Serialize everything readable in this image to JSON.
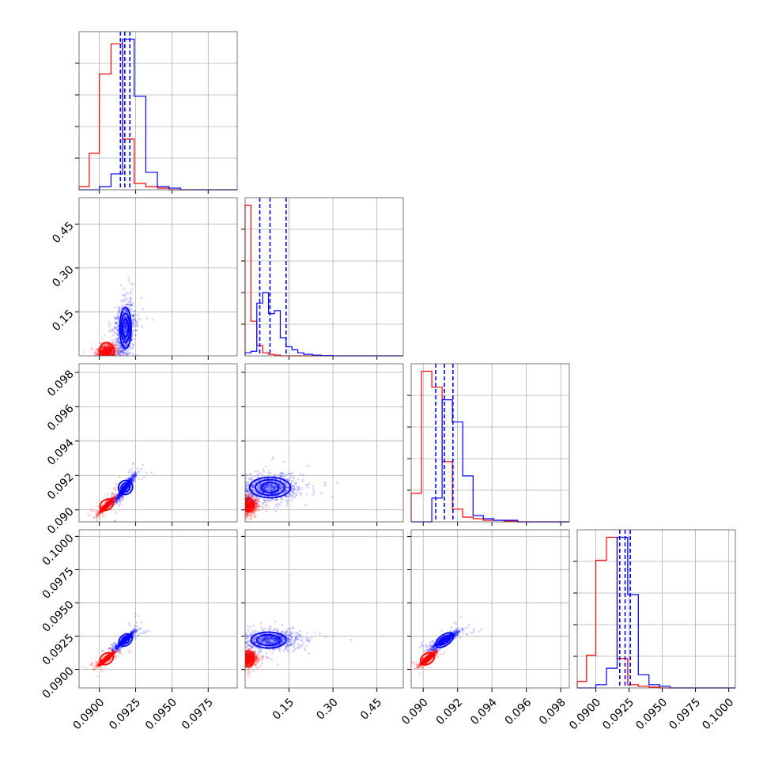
{
  "chart_data": {
    "type": "corner",
    "grid": true,
    "colors": {
      "a": "#ff0000",
      "b": "#0000ff"
    },
    "variables": [
      {
        "range": [
          0.0886,
          0.0995
        ],
        "ticks": [
          {
            "v": 0.09,
            "label": "0.0900"
          },
          {
            "v": 0.0925,
            "label": "0.0925"
          },
          {
            "v": 0.095,
            "label": "0.0950"
          },
          {
            "v": 0.0975,
            "label": "0.0975"
          }
        ]
      },
      {
        "range": [
          0.0,
          0.54
        ],
        "ticks": [
          {
            "v": 0.15,
            "label": "0.15"
          },
          {
            "v": 0.3,
            "label": "0.30"
          },
          {
            "v": 0.45,
            "label": "0.45"
          }
        ]
      },
      {
        "range": [
          0.0893,
          0.0985
        ],
        "ticks": [
          {
            "v": 0.09,
            "label": "0.090"
          },
          {
            "v": 0.092,
            "label": "0.092"
          },
          {
            "v": 0.094,
            "label": "0.094"
          },
          {
            "v": 0.096,
            "label": "0.096"
          },
          {
            "v": 0.098,
            "label": "0.098"
          }
        ]
      },
      {
        "range": [
          0.0886,
          0.1005
        ],
        "ticks": [
          {
            "v": 0.09,
            "label": "0.0900"
          },
          {
            "v": 0.0925,
            "label": "0.0925"
          },
          {
            "v": 0.095,
            "label": "0.0950"
          },
          {
            "v": 0.0975,
            "label": "0.0975"
          },
          {
            "v": 0.1,
            "label": "0.1000"
          }
        ]
      }
    ],
    "histograms": [
      {
        "edges": [
          0.0886,
          0.0893,
          0.09,
          0.0908,
          0.0916,
          0.0924,
          0.0932,
          0.094,
          0.0948,
          0.0956,
          0.0964,
          0.0995
        ],
        "a": [
          0.02,
          0.23,
          0.73,
          0.92,
          0.32,
          0.04,
          0.02,
          0.01,
          0,
          0,
          0
        ],
        "b": [
          0,
          0,
          0.02,
          0.1,
          0.95,
          0.59,
          0.11,
          0.02,
          0.01,
          0,
          0
        ],
        "quantiles_b": [
          0.09145,
          0.09175,
          0.0921
        ]
      },
      {
        "edges": [
          0.0,
          0.02,
          0.04,
          0.06,
          0.08,
          0.1,
          0.12,
          0.14,
          0.16,
          0.18,
          0.2,
          0.23,
          0.26,
          0.3,
          0.54
        ],
        "a": [
          1.0,
          0.23,
          0.07,
          0.02,
          0.01,
          0.005,
          0,
          0,
          0,
          0,
          0,
          0,
          0,
          0
        ],
        "b": [
          0.02,
          0.03,
          0.35,
          0.42,
          0.28,
          0.3,
          0.12,
          0.06,
          0.04,
          0.02,
          0.01,
          0.005,
          0.002,
          0
        ],
        "quantiles_b": [
          0.05,
          0.085,
          0.14
        ]
      },
      {
        "edges": [
          0.0893,
          0.0899,
          0.0905,
          0.0911,
          0.0917,
          0.0923,
          0.0929,
          0.0935,
          0.0941,
          0.0947,
          0.0955,
          0.0985
        ],
        "a": [
          0.18,
          0.95,
          0.85,
          0.38,
          0.08,
          0.03,
          0.02,
          0.01,
          0.01,
          0.005,
          0
        ],
        "b": [
          0,
          0,
          0.15,
          0.77,
          0.63,
          0.29,
          0.04,
          0.02,
          0.01,
          0.01,
          0
        ],
        "quantiles_b": [
          0.09073,
          0.09123,
          0.09173
        ]
      },
      {
        "edges": [
          0.0886,
          0.0893,
          0.09,
          0.0908,
          0.0916,
          0.0924,
          0.0932,
          0.094,
          0.0948,
          0.0956,
          0.0964,
          0.1005
        ],
        "a": [
          0.04,
          0.2,
          0.78,
          0.92,
          0.18,
          0.02,
          0.01,
          0.005,
          0,
          0,
          0
        ],
        "b": [
          0,
          0,
          0.02,
          0.12,
          0.92,
          0.57,
          0.08,
          0.02,
          0.01,
          0,
          0
        ],
        "quantiles_b": [
          0.0918,
          0.0922,
          0.0926
        ]
      }
    ],
    "distributions": {
      "a": {
        "mean": [
          0.0905,
          0.012,
          0.09025,
          0.0908
        ],
        "sd": [
          0.0003,
          0.014,
          0.00025,
          0.00028
        ]
      },
      "b": {
        "mean": [
          0.09175,
          0.09,
          0.09125,
          0.0922
        ],
        "sd": [
          0.00035,
          0.05,
          0.0004,
          0.00035
        ]
      }
    },
    "contours": [
      {
        "row": 1,
        "col": 0,
        "set": "a",
        "cx": 0.0905,
        "cy": 0.015,
        "rx": 0.0005,
        "ry": 0.03,
        "rot": 0
      },
      {
        "row": 1,
        "col": 0,
        "set": "b",
        "cx": 0.0918,
        "cy": 0.095,
        "rx": 0.0004,
        "ry": 0.07,
        "rot": 0
      },
      {
        "row": 1,
        "col": 0,
        "set": "b",
        "cx": 0.0918,
        "cy": 0.095,
        "rx": 0.0003,
        "ry": 0.05,
        "rot": 0
      },
      {
        "row": 1,
        "col": 0,
        "set": "b",
        "cx": 0.0918,
        "cy": 0.095,
        "rx": 0.0002,
        "ry": 0.03,
        "rot": 0
      },
      {
        "row": 2,
        "col": 0,
        "set": "a",
        "cx": 0.0905,
        "cy": 0.0903,
        "rx": 0.0005,
        "ry": 0.0003,
        "rot": -30
      },
      {
        "row": 2,
        "col": 0,
        "set": "b",
        "cx": 0.0918,
        "cy": 0.0913,
        "rx": 0.0005,
        "ry": 0.0004,
        "rot": -35
      },
      {
        "row": 2,
        "col": 0,
        "set": "b",
        "cx": 0.0918,
        "cy": 0.0913,
        "rx": 0.0003,
        "ry": 0.00025,
        "rot": -35
      },
      {
        "row": 2,
        "col": 1,
        "set": "a",
        "cx": 0.01,
        "cy": 0.0903,
        "rx": 0.02,
        "ry": 0.0004,
        "rot": 0
      },
      {
        "row": 2,
        "col": 1,
        "set": "b",
        "cx": 0.085,
        "cy": 0.0913,
        "rx": 0.07,
        "ry": 0.0006,
        "rot": 0
      },
      {
        "row": 2,
        "col": 1,
        "set": "b",
        "cx": 0.085,
        "cy": 0.0913,
        "rx": 0.05,
        "ry": 0.00045,
        "rot": 0
      },
      {
        "row": 2,
        "col": 1,
        "set": "b",
        "cx": 0.085,
        "cy": 0.0913,
        "rx": 0.03,
        "ry": 0.0003,
        "rot": 0
      },
      {
        "row": 3,
        "col": 0,
        "set": "a",
        "cx": 0.0905,
        "cy": 0.0908,
        "rx": 0.0005,
        "ry": 0.0004,
        "rot": -35
      },
      {
        "row": 3,
        "col": 0,
        "set": "b",
        "cx": 0.0918,
        "cy": 0.0922,
        "rx": 0.0005,
        "ry": 0.0004,
        "rot": -35
      },
      {
        "row": 3,
        "col": 0,
        "set": "b",
        "cx": 0.0918,
        "cy": 0.0922,
        "rx": 0.0003,
        "ry": 0.00025,
        "rot": -35
      },
      {
        "row": 3,
        "col": 1,
        "set": "a",
        "cx": 0.01,
        "cy": 0.0908,
        "rx": 0.02,
        "ry": 0.0006,
        "rot": 0
      },
      {
        "row": 3,
        "col": 1,
        "set": "b",
        "cx": 0.08,
        "cy": 0.0922,
        "rx": 0.06,
        "ry": 0.0006,
        "rot": 0
      },
      {
        "row": 3,
        "col": 1,
        "set": "b",
        "cx": 0.08,
        "cy": 0.0922,
        "rx": 0.04,
        "ry": 0.0004,
        "rot": 0
      },
      {
        "row": 3,
        "col": 2,
        "set": "a",
        "cx": 0.09025,
        "cy": 0.0908,
        "rx": 0.00045,
        "ry": 0.0004,
        "rot": -35
      },
      {
        "row": 3,
        "col": 2,
        "set": "b",
        "cx": 0.09125,
        "cy": 0.0922,
        "rx": 0.0006,
        "ry": 0.0004,
        "rot": -35
      },
      {
        "row": 3,
        "col": 2,
        "set": "b",
        "cx": 0.09125,
        "cy": 0.0922,
        "rx": 0.0004,
        "ry": 0.00025,
        "rot": -35
      }
    ]
  }
}
